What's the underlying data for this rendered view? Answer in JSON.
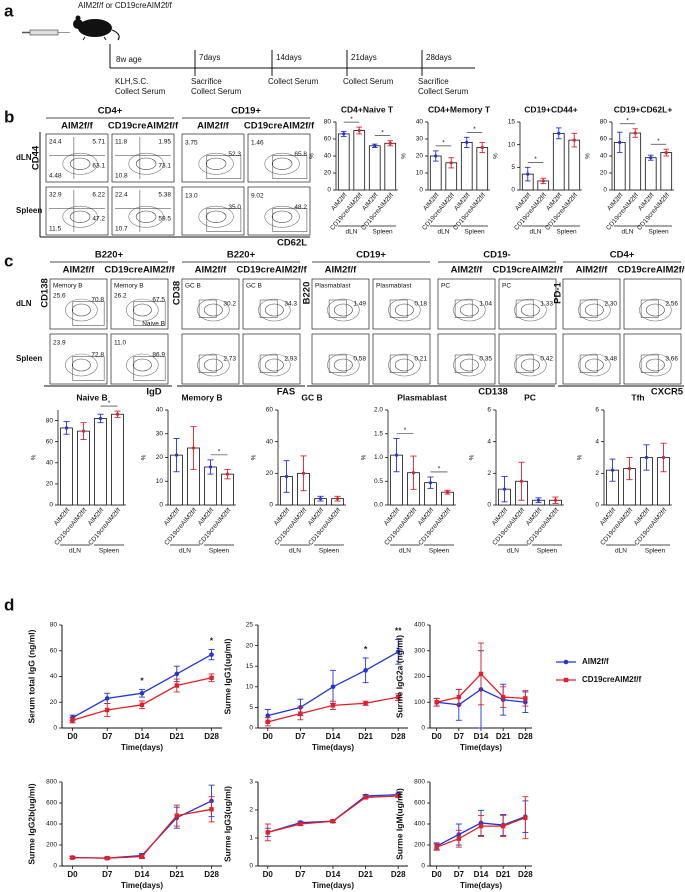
{
  "panel_labels": [
    "a",
    "b",
    "c",
    "d"
  ],
  "timeline": {
    "mouse_label": "AIM2f/f or CD19creAIM2f/f",
    "steps": [
      {
        "time": "8w age",
        "lines": [
          "KLH,S.C.",
          "Collect Serum"
        ]
      },
      {
        "time": "7days",
        "lines": [
          "Sacrifice",
          "Collect Serum"
        ]
      },
      {
        "time": "14days",
        "lines": [
          "Collect Serum"
        ]
      },
      {
        "time": "21days",
        "lines": [
          "Collect Serum"
        ]
      },
      {
        "time": "28days",
        "lines": [
          "Sacrifice",
          "Collect Serum"
        ]
      }
    ]
  },
  "flow_b": {
    "y_label": "CD44",
    "x_label": "CD62L",
    "rows": [
      "dLN",
      "Spleen"
    ],
    "groups": [
      {
        "title": "CD4+",
        "columns": [
          "AIM2f/f",
          "CD19creAIM2f/f"
        ],
        "cells": [
          [
            {
              "gates": [
                "24.4",
                "5.71",
                "4.48",
                "63.1"
              ]
            },
            {
              "gates": [
                "11.8",
                "1.95",
                "10.8",
                "73.1"
              ]
            }
          ],
          [
            {
              "gates": [
                "32.9",
                "6.22",
                "11.5",
                "47.2"
              ]
            },
            {
              "gates": [
                "22.4",
                "5.38",
                "10.7",
                "59.5"
              ]
            }
          ]
        ]
      },
      {
        "title": "CD19+",
        "columns": [
          "AIM2f/f",
          "CD19creAIM2f/f"
        ],
        "cells": [
          [
            {
              "gates": [
                "3.75",
                "52.3"
              ]
            },
            {
              "gates": [
                "1.46",
                "65.8"
              ]
            }
          ],
          [
            {
              "gates": [
                "13.0",
                "35.0"
              ]
            },
            {
              "gates": [
                "9.02",
                "48.2"
              ]
            }
          ]
        ]
      }
    ]
  },
  "flow_c": {
    "rows": [
      "dLN",
      "Spleen"
    ],
    "groups": [
      {
        "title": "B220+",
        "columns": [
          "AIM2f/f",
          "CD19creAIM2f/f"
        ],
        "y_label": "CD138",
        "x_label": "IgD",
        "cells": [
          [
            {
              "labels": [
                "Memory B"
              ],
              "gates": [
                "25.6",
                "70.8"
              ]
            },
            {
              "labels": [
                "Memory B",
                "Naive B"
              ],
              "gates": [
                "26.2",
                "67.5"
              ]
            }
          ],
          [
            {
              "gates": [
                "23.9",
                "72.8"
              ]
            },
            {
              "gates": [
                "11.0",
                "86.9"
              ]
            }
          ]
        ]
      },
      {
        "title": "B220+",
        "columns": [
          "AIM2f/f",
          "CD19creAIM2f/f"
        ],
        "y_label": "CD38",
        "x_label": "FAS",
        "cells": [
          [
            {
              "labels": [
                "GC B"
              ],
              "gates": [
                "30.2"
              ]
            },
            {
              "labels": [
                "GC B"
              ],
              "gates": [
                "34.3"
              ]
            }
          ],
          [
            {
              "gates": [
                "2.73"
              ]
            },
            {
              "gates": [
                "2.93"
              ]
            }
          ]
        ]
      },
      {
        "title": "CD19+",
        "columns": [
          "AIM2f/f"
        ],
        "y_label": "B220",
        "cells": [
          [
            {
              "labels": [
                "Plasmablast"
              ],
              "gates": [
                "1.49"
              ]
            },
            {
              "labels": [
                "Plasmablast"
              ],
              "gates": [
                "0.18"
              ]
            }
          ],
          [
            {
              "gates": [
                "0.58"
              ]
            },
            {
              "gates": [
                "0.21"
              ]
            }
          ]
        ]
      },
      {
        "title": "CD19-",
        "columns": [
          "AIM2f/f",
          "CD19creAIM2f/f"
        ],
        "x_label": "CD138",
        "cells": [
          [
            {
              "labels": [
                "PC"
              ],
              "gates": [
                "1.04"
              ]
            },
            {
              "labels": [
                "PC"
              ],
              "gates": [
                "1.33"
              ]
            }
          ],
          [
            {
              "gates": [
                "0.35"
              ]
            },
            {
              "gates": [
                "0.42"
              ]
            }
          ]
        ]
      },
      {
        "title": "CD4+",
        "columns": [
          "AIM2f/f",
          "CD19creAIM2f/f"
        ],
        "y_label": "PD-1",
        "x_label": "CXCR5",
        "cells": [
          [
            {
              "gates": [
                "2.30"
              ]
            },
            {
              "gates": [
                "2.56"
              ]
            }
          ],
          [
            {
              "gates": [
                "3.48"
              ]
            },
            {
              "gates": [
                "3.66"
              ]
            }
          ]
        ]
      }
    ]
  },
  "chart_data": [
    {
      "type": "bar",
      "title": "CD4+Naive T",
      "ylabel": "%",
      "categories": [
        "AIM2f/f",
        "CD19creAIM2f/f",
        "AIM2f/f",
        "CD19creAIM2f/f"
      ],
      "groups": [
        "dLN",
        "Spleen"
      ],
      "values": [
        66,
        70,
        52,
        55
      ],
      "errors": [
        3,
        4,
        2,
        3
      ],
      "colors": [
        "#2233dd",
        "#e0202a",
        "#2233dd",
        "#e0202a"
      ],
      "sig": [
        "*",
        "*"
      ],
      "ylim": [
        0,
        80
      ],
      "yticks": [
        0,
        20,
        40,
        60,
        80
      ]
    },
    {
      "type": "bar",
      "title": "CD4+Memory T",
      "ylabel": "%",
      "categories": [
        "AIM2f/f",
        "CD19creAIM2f/f",
        "AIM2f/f",
        "CD19creAIM2f/f"
      ],
      "groups": [
        "dLN",
        "Spleen"
      ],
      "values": [
        20,
        16,
        28,
        25
      ],
      "errors": [
        3,
        3,
        3,
        3
      ],
      "colors": [
        "#2233dd",
        "#e0202a",
        "#2233dd",
        "#e0202a"
      ],
      "sig": [
        "*",
        "*"
      ],
      "ylim": [
        0,
        40
      ],
      "yticks": [
        0,
        10,
        20,
        30,
        40
      ]
    },
    {
      "type": "bar",
      "title": "CD19+CD44+",
      "ylabel": "%",
      "categories": [
        "AIM2f/f",
        "CD19creAIM2f/f",
        "AIM2f/f",
        "CD19creAIM2f/f"
      ],
      "groups": [
        "dLN",
        "Spleen"
      ],
      "values": [
        3.5,
        2,
        12.5,
        11
      ],
      "errors": [
        1.5,
        0.6,
        1.2,
        1.5
      ],
      "colors": [
        "#2233dd",
        "#e0202a",
        "#2233dd",
        "#e0202a"
      ],
      "sig": [
        "*",
        null
      ],
      "ylim": [
        0,
        15
      ],
      "yticks": [
        0,
        5,
        10,
        15
      ]
    },
    {
      "type": "bar",
      "title": "CD19+CD62L+",
      "ylabel": "%",
      "categories": [
        "AIM2f/f",
        "CD19creAIM2f/f",
        "AIM2f/f",
        "CD19creAIM2f/f"
      ],
      "groups": [
        "dLN",
        "Spleen"
      ],
      "values": [
        56,
        67,
        38,
        44
      ],
      "errors": [
        12,
        5,
        3,
        4
      ],
      "colors": [
        "#2233dd",
        "#e0202a",
        "#2233dd",
        "#e0202a"
      ],
      "sig": [
        "*",
        "*"
      ],
      "ylim": [
        0,
        80
      ],
      "yticks": [
        0,
        20,
        40,
        60,
        80
      ]
    },
    {
      "type": "bar",
      "title": "Naive B",
      "ylabel": "%",
      "categories": [
        "AIM2f/f",
        "CD19creAIM2f/f",
        "AIM2f/f",
        "CD19creAIM2f/f"
      ],
      "groups": [
        "dLN",
        "Spleen"
      ],
      "values": [
        73,
        70,
        82,
        86
      ],
      "errors": [
        6,
        8,
        4,
        3
      ],
      "colors": [
        "#2233dd",
        "#e0202a",
        "#2233dd",
        "#e0202a"
      ],
      "sig": [
        null,
        "*"
      ],
      "ylim": [
        0,
        90
      ],
      "yticks": [
        0,
        20,
        40,
        60,
        80
      ]
    },
    {
      "type": "bar",
      "title": "Memory B",
      "ylabel": "%",
      "categories": [
        "AIM2f/f",
        "CD19creAIM2f/f",
        "AIM2f/f",
        "CD19creAIM2f/f"
      ],
      "groups": [
        "dLN",
        "Spleen"
      ],
      "values": [
        21,
        24,
        16,
        13
      ],
      "errors": [
        7,
        9,
        3,
        2
      ],
      "colors": [
        "#2233dd",
        "#e0202a",
        "#2233dd",
        "#e0202a"
      ],
      "sig": [
        null,
        "*"
      ],
      "ylim": [
        0,
        40
      ],
      "yticks": [
        0,
        10,
        20,
        30,
        40
      ]
    },
    {
      "type": "bar",
      "title": "GC B",
      "ylabel": "%",
      "categories": [
        "AIM2f/f",
        "CD19creAIM2f/f",
        "AIM2f/f",
        "CD19creAIM2f/f"
      ],
      "groups": [
        "dLN",
        "Spleen"
      ],
      "values": [
        18,
        20,
        4,
        4
      ],
      "errors": [
        10,
        11,
        1.5,
        1.5
      ],
      "colors": [
        "#2233dd",
        "#e0202a",
        "#2233dd",
        "#e0202a"
      ],
      "sig": [
        null,
        null
      ],
      "ylim": [
        0,
        60
      ],
      "yticks": [
        0,
        20,
        40,
        60
      ]
    },
    {
      "type": "bar",
      "title": "Plasmablast",
      "ylabel": "%",
      "categories": [
        "AIM2f/f",
        "CD19creAIM2f/f",
        "AIM2f/f",
        "CD19creAIM2f/f"
      ],
      "groups": [
        "dLN",
        "Spleen"
      ],
      "values": [
        1.05,
        0.68,
        0.47,
        0.27
      ],
      "errors": [
        0.35,
        0.35,
        0.12,
        0.04
      ],
      "colors": [
        "#2233dd",
        "#e0202a",
        "#2233dd",
        "#e0202a"
      ],
      "sig": [
        "*",
        "*"
      ],
      "ylim": [
        0,
        2
      ],
      "yticks": [
        {
          "value": 0,
          "label": "0.0"
        },
        0.5,
        {
          "value": 1,
          "label": "1.0"
        },
        1.5,
        {
          "value": 2,
          "label": "2.0"
        }
      ]
    },
    {
      "type": "bar",
      "title": "PC",
      "ylabel": "%",
      "categories": [
        "AIM2f/f",
        "CD19creAIM2f/f",
        "AIM2f/f",
        "CD19creAIM2f/f"
      ],
      "groups": [
        "dLN",
        "Spleen"
      ],
      "values": [
        1.0,
        1.5,
        0.3,
        0.3
      ],
      "errors": [
        0.8,
        1.2,
        0.15,
        0.2
      ],
      "colors": [
        "#2233dd",
        "#e0202a",
        "#2233dd",
        "#e0202a"
      ],
      "sig": [
        null,
        null
      ],
      "ylim": [
        0,
        6
      ],
      "yticks": [
        0,
        2,
        4,
        6
      ]
    },
    {
      "type": "bar",
      "title": "Tfh",
      "ylabel": "%",
      "categories": [
        "AIM2f/f",
        "CD19creAIM2f/f",
        "AIM2f/f",
        "CD19creAIM2f/f"
      ],
      "groups": [
        "dLN",
        "Spleen"
      ],
      "values": [
        2.2,
        2.3,
        3.0,
        3.0
      ],
      "errors": [
        0.7,
        0.7,
        0.8,
        0.9
      ],
      "colors": [
        "#2233dd",
        "#e0202a",
        "#2233dd",
        "#e0202a"
      ],
      "sig": [
        null,
        null
      ],
      "ylim": [
        0,
        6
      ],
      "yticks": [
        0,
        2,
        4,
        6
      ]
    },
    {
      "type": "line",
      "ylabel": "Serum total IgG (ng/ml)",
      "xlabel": "Time(days)",
      "categories": [
        "D0",
        "D7",
        "D14",
        "D21",
        "D28"
      ],
      "sig": [
        null,
        null,
        "*",
        null,
        "*"
      ],
      "series": [
        {
          "name": "AIM2f/f",
          "color": "#1f35d8",
          "values": [
            8,
            23,
            27,
            42,
            57
          ],
          "errors": [
            2,
            4,
            3,
            6,
            4
          ]
        },
        {
          "name": "CD19creAIM2f/f",
          "color": "#e0202a",
          "values": [
            6,
            14,
            18,
            33,
            39
          ],
          "errors": [
            2,
            5,
            3,
            5,
            3
          ]
        }
      ],
      "ylim": [
        0,
        80
      ],
      "yticks": [
        0,
        20,
        40,
        60,
        80
      ]
    },
    {
      "type": "line",
      "ylabel": "Surme IgG1(ug/ml)",
      "xlabel": "Time(days)",
      "categories": [
        "D0",
        "D7",
        "D14",
        "D21",
        "D28"
      ],
      "sig": [
        null,
        null,
        null,
        "*",
        "**"
      ],
      "series": [
        {
          "name": "AIM2f/f",
          "color": "#1f35d8",
          "values": [
            3,
            5,
            10,
            14,
            18.5
          ],
          "errors": [
            1.5,
            2,
            4,
            3,
            3
          ]
        },
        {
          "name": "CD19creAIM2f/f",
          "color": "#e0202a",
          "values": [
            1.5,
            3.5,
            5.5,
            6,
            7.5
          ],
          "errors": [
            1,
            1.5,
            1,
            0.5,
            0.8
          ]
        }
      ],
      "ylim": [
        0,
        25
      ],
      "yticks": [
        0,
        5,
        10,
        15,
        20,
        25
      ]
    },
    {
      "type": "line",
      "ylabel": "Surme IgG2a (ng/ml)",
      "xlabel": "Time(days)",
      "categories": [
        "D0",
        "D7",
        "D14",
        "D21",
        "D28"
      ],
      "series": [
        {
          "name": "AIM2f/f",
          "color": "#1f35d8",
          "values": [
            100,
            90,
            150,
            110,
            100
          ],
          "errors": [
            15,
            60,
            150,
            60,
            40
          ]
        },
        {
          "name": "CD19creAIM2f/f",
          "color": "#e0202a",
          "values": [
            100,
            120,
            210,
            120,
            115
          ],
          "errors": [
            15,
            30,
            120,
            40,
            30
          ]
        }
      ],
      "ylim": [
        0,
        400
      ],
      "yticks": [
        0,
        100,
        200,
        300,
        400
      ]
    },
    {
      "type": "line",
      "ylabel": "Surme IgG2b(ug/ml)",
      "xlabel": "Time(days)",
      "categories": [
        "D0",
        "D7",
        "D14",
        "D21",
        "D28"
      ],
      "series": [
        {
          "name": "AIM2f/f",
          "color": "#1f35d8",
          "values": [
            80,
            75,
            100,
            460,
            620
          ],
          "errors": [
            10,
            10,
            20,
            100,
            150
          ]
        },
        {
          "name": "CD19creAIM2f/f",
          "color": "#e0202a",
          "values": [
            80,
            75,
            90,
            480,
            540
          ],
          "errors": [
            10,
            10,
            20,
            100,
            120
          ]
        }
      ],
      "ylim": [
        0,
        800
      ],
      "yticks": [
        0,
        200,
        400,
        600,
        800
      ]
    },
    {
      "type": "line",
      "ylabel": "Surme IgG3(ug/ml)",
      "xlabel": "Time(days)",
      "categories": [
        "D0",
        "D7",
        "D14",
        "D21",
        "D28"
      ],
      "series": [
        {
          "name": "AIM2f/f",
          "color": "#1f35d8",
          "values": [
            1.2,
            1.55,
            1.6,
            2.5,
            2.55
          ],
          "errors": [
            0.15,
            0.05,
            0.05,
            0.05,
            0.05
          ]
        },
        {
          "name": "CD19creAIM2f/f",
          "color": "#e0202a",
          "values": [
            1.2,
            1.5,
            1.6,
            2.45,
            2.5
          ],
          "errors": [
            0.3,
            0.05,
            0.05,
            0.05,
            0.05
          ]
        }
      ],
      "ylim": [
        0,
        3
      ],
      "yticks": [
        0,
        1,
        2,
        3
      ]
    },
    {
      "type": "line",
      "ylabel": "Surme IgM(ug/ml)",
      "xlabel": "Time(days)",
      "categories": [
        "D0",
        "D7",
        "D14",
        "D21",
        "D28"
      ],
      "series": [
        {
          "name": "AIM2f/f",
          "color": "#1f35d8",
          "values": [
            190,
            300,
            410,
            390,
            470
          ],
          "errors": [
            30,
            100,
            120,
            100,
            150
          ]
        },
        {
          "name": "CD19creAIM2f/f",
          "color": "#e0202a",
          "values": [
            180,
            260,
            380,
            380,
            460
          ],
          "errors": [
            30,
            80,
            100,
            100,
            200
          ]
        }
      ],
      "ylim": [
        0,
        800
      ],
      "yticks": [
        0,
        200,
        400,
        600,
        800
      ]
    }
  ]
}
